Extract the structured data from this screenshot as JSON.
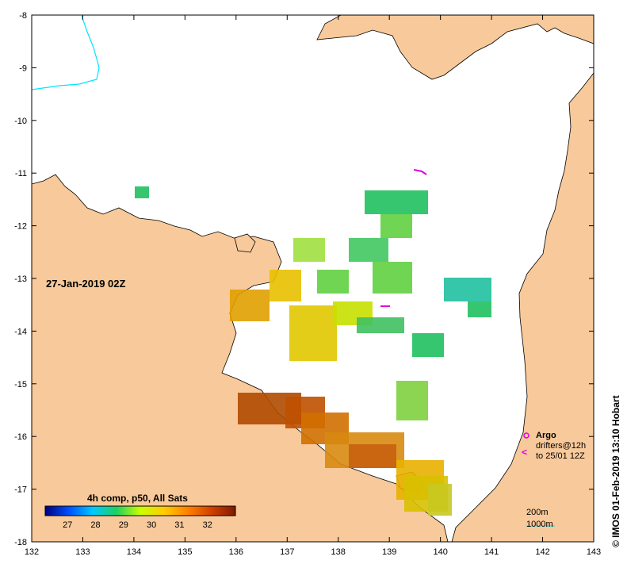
{
  "map": {
    "lon_ticks": [
      "132",
      "133",
      "134",
      "135",
      "136",
      "137",
      "138",
      "139",
      "140",
      "141",
      "142",
      "143"
    ],
    "lat_ticks": [
      "-8",
      "-9",
      "-10",
      "-11",
      "-12",
      "-13",
      "-14",
      "-15",
      "-16",
      "-17",
      "-18"
    ],
    "colors": {
      "land": "#f8c99a",
      "sea": "#ffffff",
      "coast": "#000000",
      "contour_200m": "#00e5ff"
    }
  },
  "date_label": "27-Jan-2019 02Z",
  "colorbar": {
    "title": "4h comp, p50, All Sats",
    "tick_labels": [
      "27",
      "28",
      "29",
      "30",
      "31",
      "32"
    ],
    "range": [
      26.2,
      33.0
    ],
    "colors": [
      "#00007f",
      "#0050ff",
      "#00c8ff",
      "#20d060",
      "#c8ff00",
      "#ffcc00",
      "#ff8000",
      "#d04000",
      "#7f1a00"
    ]
  },
  "legend": {
    "argo_label": "Argo",
    "drifters_line1": "drifters@12h",
    "drifters_line2": "to 25/01 12Z",
    "argo_color": "#e000e0",
    "drifter_color": "#e000e0"
  },
  "depth_legend": {
    "contour_200": "200m",
    "contour_1000": "1000m"
  },
  "credit": "© IMOS 01-Feb-2019 13:10 Hobart"
}
